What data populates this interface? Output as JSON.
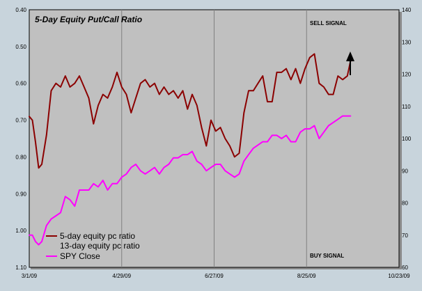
{
  "chart_data": {
    "type": "line",
    "title": "5-Day Equity Put/Call Ratio",
    "annotations": {
      "sell_signal": "SELL SIGNAL",
      "buy_signal": "BUY SIGNAL"
    },
    "x_tick_labels": [
      "3/1/09",
      "4/29/09",
      "6/27/09",
      "8/25/09",
      "10/23/09"
    ],
    "x_range": [
      "3/1/09",
      "10/23/09"
    ],
    "y_left": {
      "range": [
        0.4,
        1.1
      ],
      "inverted": true,
      "tick_labels": [
        "0.40",
        "0.50",
        "0.60",
        "0.70",
        "0.80",
        "0.90",
        "1.00",
        "1.10"
      ]
    },
    "y_right": {
      "range": [
        60,
        140
      ],
      "tick_labels": [
        "140",
        "130",
        "120",
        "110",
        "100",
        "90",
        "80",
        "70",
        "60"
      ]
    },
    "grid": "vertical lines at x ticks",
    "legend": {
      "placement": "bottom-left",
      "entries": [
        "5-day equity pc ratio",
        "13-day equity pc ratio",
        "SPY Close"
      ]
    },
    "colors": {
      "pc_ratio": "#8b0000",
      "spy": "#ff00ff",
      "plot_bg": "#c0c0c0",
      "frame_bg": "#c8d4dc",
      "grid": "#808080"
    },
    "series": [
      {
        "name": "5-day equity pc ratio",
        "axis": "left",
        "points": [
          [
            "3/1/09",
            0.69
          ],
          [
            "3/3/09",
            0.7
          ],
          [
            "3/5/09",
            0.76
          ],
          [
            "3/7/09",
            0.83
          ],
          [
            "3/9/09",
            0.82
          ],
          [
            "3/12/09",
            0.74
          ],
          [
            "3/15/09",
            0.62
          ],
          [
            "3/18/09",
            0.6
          ],
          [
            "3/21/09",
            0.61
          ],
          [
            "3/24/09",
            0.58
          ],
          [
            "3/27/09",
            0.61
          ],
          [
            "3/30/09",
            0.6
          ],
          [
            "4/2/09",
            0.58
          ],
          [
            "4/5/09",
            0.61
          ],
          [
            "4/8/09",
            0.64
          ],
          [
            "4/11/09",
            0.71
          ],
          [
            "4/14/09",
            0.66
          ],
          [
            "4/17/09",
            0.63
          ],
          [
            "4/20/09",
            0.64
          ],
          [
            "4/23/09",
            0.61
          ],
          [
            "4/26/09",
            0.57
          ],
          [
            "4/29/09",
            0.61
          ],
          [
            "5/2/09",
            0.63
          ],
          [
            "5/5/09",
            0.68
          ],
          [
            "5/8/09",
            0.64
          ],
          [
            "5/11/09",
            0.6
          ],
          [
            "5/14/09",
            0.59
          ],
          [
            "5/17/09",
            0.61
          ],
          [
            "5/20/09",
            0.6
          ],
          [
            "5/23/09",
            0.63
          ],
          [
            "5/26/09",
            0.61
          ],
          [
            "5/29/09",
            0.63
          ],
          [
            "6/1/09",
            0.62
          ],
          [
            "6/4/09",
            0.64
          ],
          [
            "6/7/09",
            0.62
          ],
          [
            "6/10/09",
            0.67
          ],
          [
            "6/13/09",
            0.63
          ],
          [
            "6/16/09",
            0.66
          ],
          [
            "6/19/09",
            0.72
          ],
          [
            "6/22/09",
            0.77
          ],
          [
            "6/25/09",
            0.7
          ],
          [
            "6/28/09",
            0.73
          ],
          [
            "7/1/09",
            0.72
          ],
          [
            "7/4/09",
            0.75
          ],
          [
            "7/7/09",
            0.77
          ],
          [
            "7/10/09",
            0.8
          ],
          [
            "7/13/09",
            0.79
          ],
          [
            "7/16/09",
            0.68
          ],
          [
            "7/19/09",
            0.62
          ],
          [
            "7/22/09",
            0.62
          ],
          [
            "7/25/09",
            0.6
          ],
          [
            "7/28/09",
            0.58
          ],
          [
            "7/31/09",
            0.65
          ],
          [
            "8/3/09",
            0.65
          ],
          [
            "8/6/09",
            0.57
          ],
          [
            "8/9/09",
            0.57
          ],
          [
            "8/12/09",
            0.56
          ],
          [
            "8/15/09",
            0.59
          ],
          [
            "8/18/09",
            0.56
          ],
          [
            "8/21/09",
            0.6
          ],
          [
            "8/24/09",
            0.56
          ],
          [
            "8/27/09",
            0.53
          ],
          [
            "8/30/09",
            0.52
          ],
          [
            "9/2/09",
            0.6
          ],
          [
            "9/5/09",
            0.61
          ],
          [
            "9/8/09",
            0.63
          ],
          [
            "9/11/09",
            0.63
          ],
          [
            "9/14/09",
            0.58
          ],
          [
            "9/17/09",
            0.59
          ],
          [
            "9/20/09",
            0.58
          ],
          [
            "9/22/09",
            0.54
          ]
        ]
      },
      {
        "name": "SPY Close",
        "axis": "right",
        "points": [
          [
            "3/1/09",
            70
          ],
          [
            "3/3/09",
            70
          ],
          [
            "3/5/09",
            68
          ],
          [
            "3/7/09",
            67
          ],
          [
            "3/9/09",
            68
          ],
          [
            "3/12/09",
            73
          ],
          [
            "3/15/09",
            75
          ],
          [
            "3/18/09",
            76
          ],
          [
            "3/21/09",
            77
          ],
          [
            "3/24/09",
            82
          ],
          [
            "3/27/09",
            81
          ],
          [
            "3/30/09",
            79
          ],
          [
            "4/2/09",
            84
          ],
          [
            "4/5/09",
            84
          ],
          [
            "4/8/09",
            84
          ],
          [
            "4/11/09",
            86
          ],
          [
            "4/14/09",
            85
          ],
          [
            "4/17/09",
            87
          ],
          [
            "4/20/09",
            84
          ],
          [
            "4/23/09",
            86
          ],
          [
            "4/26/09",
            86
          ],
          [
            "4/29/09",
            88
          ],
          [
            "5/2/09",
            89
          ],
          [
            "5/5/09",
            91
          ],
          [
            "5/8/09",
            92
          ],
          [
            "5/11/09",
            90
          ],
          [
            "5/14/09",
            89
          ],
          [
            "5/17/09",
            90
          ],
          [
            "5/20/09",
            91
          ],
          [
            "5/23/09",
            89
          ],
          [
            "5/26/09",
            91
          ],
          [
            "5/29/09",
            92
          ],
          [
            "6/1/09",
            94
          ],
          [
            "6/4/09",
            94
          ],
          [
            "6/7/09",
            95
          ],
          [
            "6/10/09",
            95
          ],
          [
            "6/13/09",
            96
          ],
          [
            "6/16/09",
            93
          ],
          [
            "6/19/09",
            92
          ],
          [
            "6/22/09",
            90
          ],
          [
            "6/25/09",
            91
          ],
          [
            "6/28/09",
            92
          ],
          [
            "7/1/09",
            92
          ],
          [
            "7/4/09",
            90
          ],
          [
            "7/7/09",
            89
          ],
          [
            "7/10/09",
            88
          ],
          [
            "7/13/09",
            89
          ],
          [
            "7/16/09",
            93
          ],
          [
            "7/19/09",
            95
          ],
          [
            "7/22/09",
            97
          ],
          [
            "7/25/09",
            98
          ],
          [
            "7/28/09",
            99
          ],
          [
            "7/31/09",
            99
          ],
          [
            "8/3/09",
            101
          ],
          [
            "8/6/09",
            101
          ],
          [
            "8/9/09",
            100
          ],
          [
            "8/12/09",
            101
          ],
          [
            "8/15/09",
            99
          ],
          [
            "8/18/09",
            99
          ],
          [
            "8/21/09",
            102
          ],
          [
            "8/24/09",
            103
          ],
          [
            "8/27/09",
            103
          ],
          [
            "8/30/09",
            104
          ],
          [
            "9/2/09",
            100
          ],
          [
            "9/5/09",
            102
          ],
          [
            "9/8/09",
            104
          ],
          [
            "9/11/09",
            105
          ],
          [
            "9/14/09",
            106
          ],
          [
            "9/17/09",
            107
          ],
          [
            "9/20/09",
            107
          ],
          [
            "9/22/09",
            107
          ]
        ]
      }
    ]
  }
}
